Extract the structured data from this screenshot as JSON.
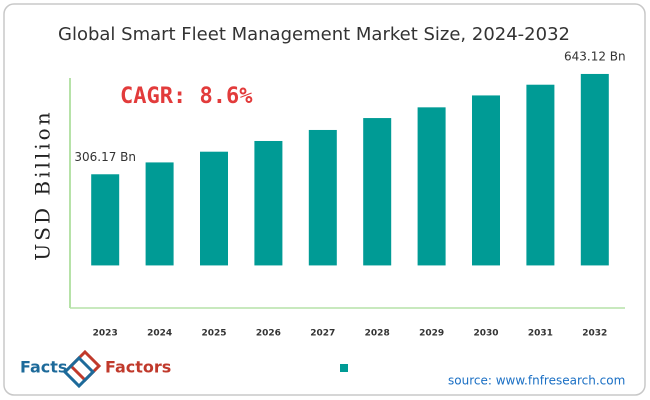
{
  "chart_data": {
    "type": "bar",
    "title": "Global Smart Fleet Management Market Size, 2024-2032",
    "annotation": "CAGR: 8.6%",
    "ylabel": "USD Billion",
    "categories": [
      "2023",
      "2024",
      "2025",
      "2026",
      "2027",
      "2028",
      "2029",
      "2030",
      "2031",
      "2032"
    ],
    "values": [
      306.17,
      346,
      382,
      418,
      455,
      495,
      531,
      571,
      607,
      643.12
    ],
    "value_labels": [
      "306.17 Bn",
      null,
      null,
      null,
      null,
      null,
      null,
      null,
      null,
      "643.12 Bn"
    ],
    "color": "#009b95",
    "ylim": [
      -143,
      690
    ],
    "logo": {
      "left": "Facts",
      "right": "Factors"
    },
    "source": "source: www.fnfresearch.com"
  }
}
